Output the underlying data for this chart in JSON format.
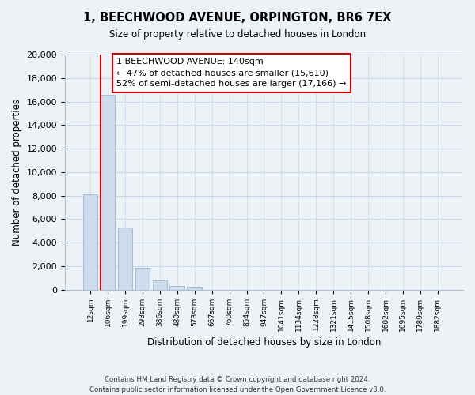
{
  "title": "1, BEECHWOOD AVENUE, ORPINGTON, BR6 7EX",
  "subtitle": "Size of property relative to detached houses in London",
  "xlabel": "Distribution of detached houses by size in London",
  "ylabel": "Number of detached properties",
  "bar_labels": [
    "12sqm",
    "106sqm",
    "199sqm",
    "293sqm",
    "386sqm",
    "480sqm",
    "573sqm",
    "667sqm",
    "760sqm",
    "854sqm",
    "947sqm",
    "1041sqm",
    "1134sqm",
    "1228sqm",
    "1321sqm",
    "1415sqm",
    "1508sqm",
    "1602sqm",
    "1695sqm",
    "1789sqm",
    "1882sqm"
  ],
  "bar_values": [
    8100,
    16600,
    5300,
    1850,
    800,
    320,
    290,
    0,
    0,
    0,
    0,
    0,
    0,
    0,
    0,
    0,
    0,
    0,
    0,
    0,
    0
  ],
  "bar_color": "#ccdcec",
  "bar_edge_color": "#9ab4cc",
  "red_line_x": 1,
  "red_line_color": "#cc0000",
  "ylim": [
    0,
    20000
  ],
  "yticks": [
    0,
    2000,
    4000,
    6000,
    8000,
    10000,
    12000,
    14000,
    16000,
    18000,
    20000
  ],
  "annotation_line1": "1 BEECHWOOD AVENUE: 140sqm",
  "annotation_line2": "← 47% of detached houses are smaller (15,610)",
  "annotation_line3": "52% of semi-detached houses are larger (17,166) →",
  "annotation_box_color": "#ffffff",
  "annotation_box_edge_color": "#cc0000",
  "footnote1": "Contains HM Land Registry data © Crown copyright and database right 2024.",
  "footnote2": "Contains public sector information licensed under the Open Government Licence v3.0.",
  "grid_color": "#c8d8e8",
  "background_color": "#edf2f7"
}
